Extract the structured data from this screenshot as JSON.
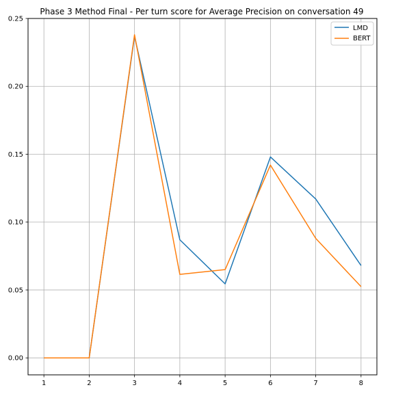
{
  "chart_data": {
    "type": "line",
    "title": "Phase 3 Method Final - Per turn score for Average Precision on conversation 49",
    "xlabel": "",
    "ylabel": "",
    "x": [
      1,
      2,
      3,
      4,
      5,
      6,
      7,
      8
    ],
    "xticks": [
      "1",
      "2",
      "3",
      "4",
      "5",
      "6",
      "7",
      "8"
    ],
    "yticks": [
      "0.00",
      "0.05",
      "0.10",
      "0.15",
      "0.20",
      "0.25"
    ],
    "xlim": [
      0.65,
      8.35
    ],
    "ylim": [
      -0.0125,
      0.25
    ],
    "grid": true,
    "legend_position": "top-right",
    "series": [
      {
        "name": "LMD",
        "color": "#1f77b4",
        "values": [
          0.0,
          0.0,
          0.237,
          0.087,
          0.0545,
          0.148,
          0.117,
          0.068
        ]
      },
      {
        "name": "BERT",
        "color": "#ff7f0e",
        "values": [
          0.0,
          0.0,
          0.238,
          0.0615,
          0.065,
          0.142,
          0.088,
          0.0525
        ]
      }
    ]
  }
}
